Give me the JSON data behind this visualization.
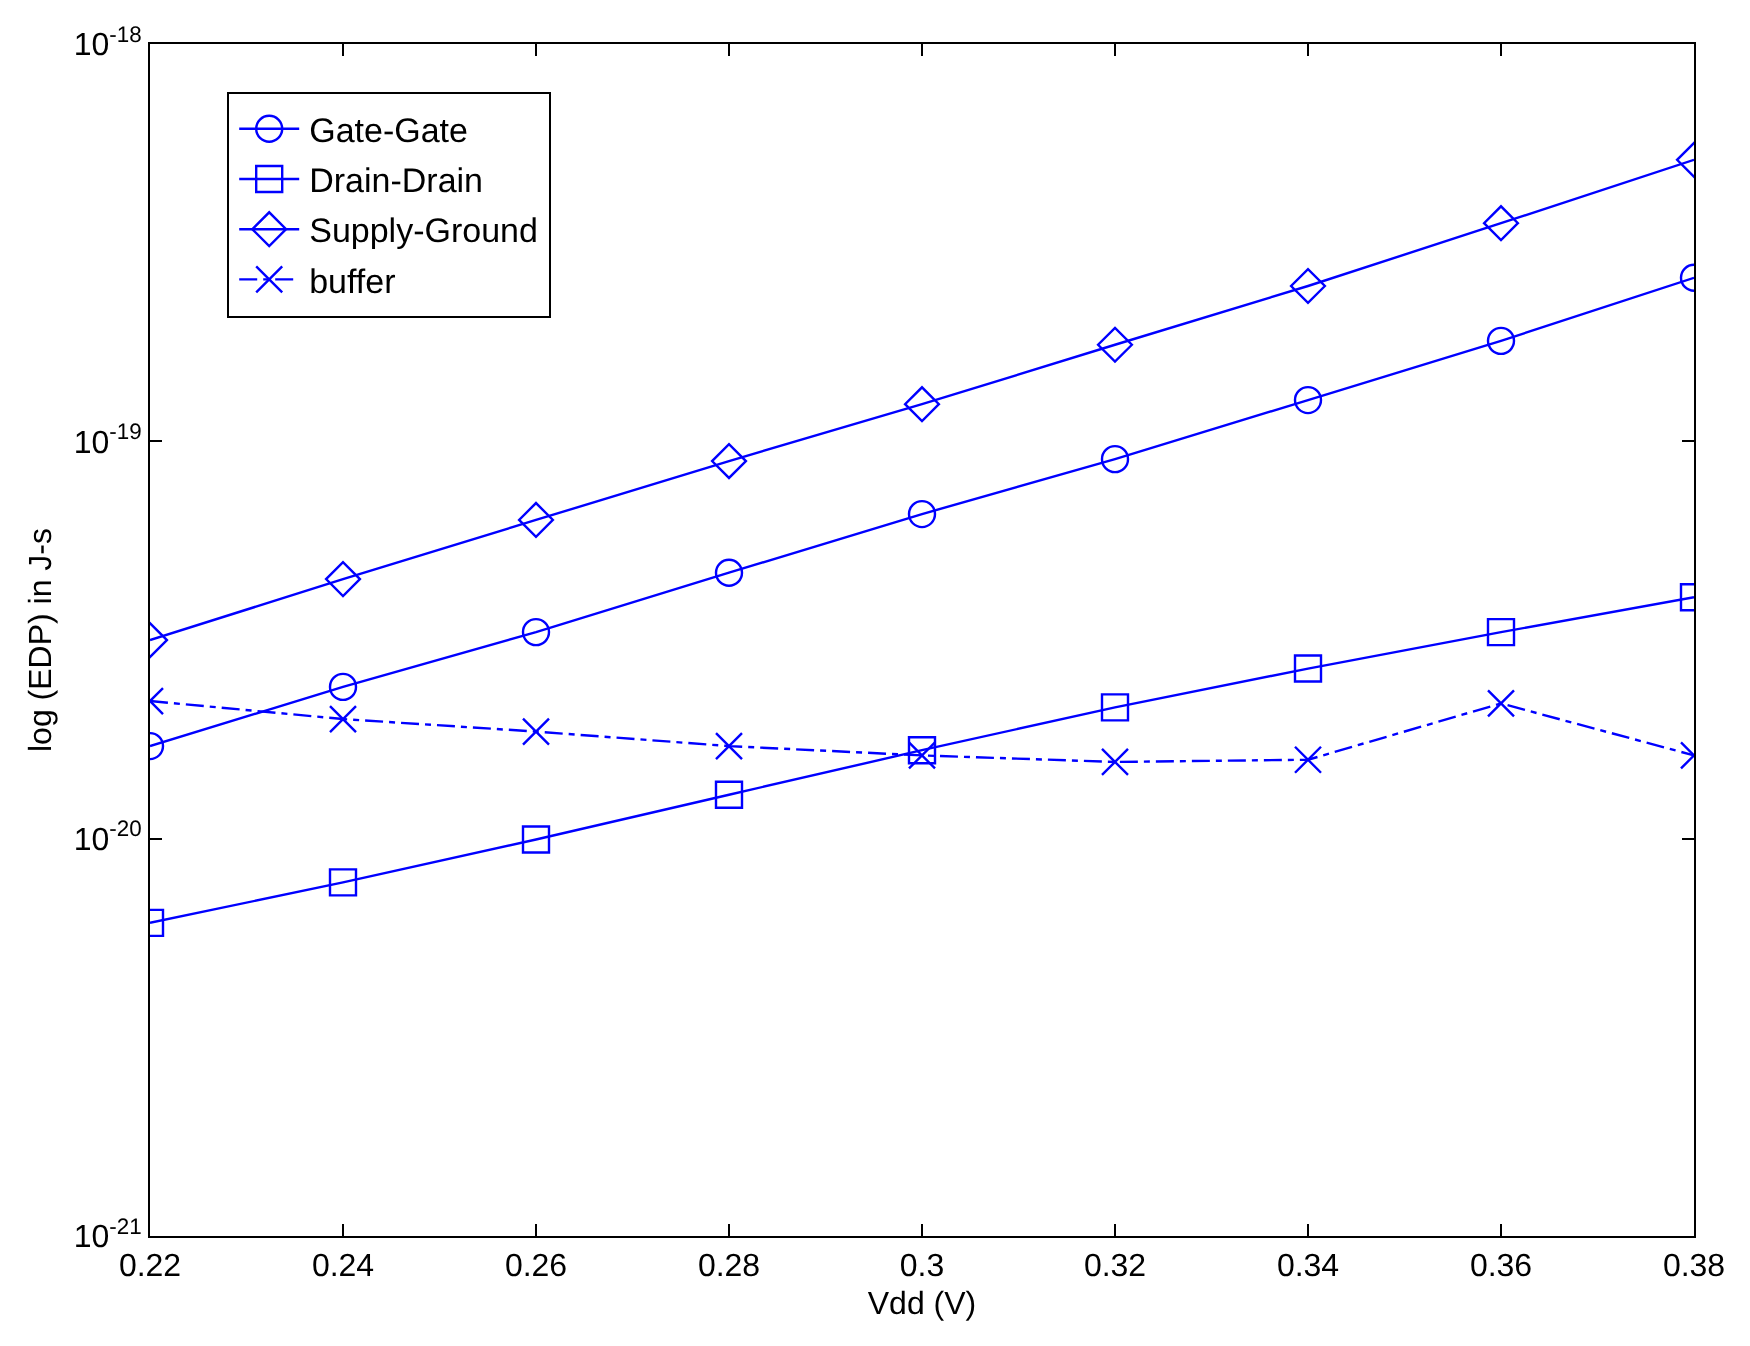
{
  "chart_data": {
    "type": "line",
    "xlabel": "Vdd (V)",
    "ylabel": "log (EDP) in J-s",
    "x": [
      0.22,
      0.24,
      0.26,
      0.28,
      0.3,
      0.32,
      0.34,
      0.36,
      0.38
    ],
    "series": [
      {
        "name": "Gate-Gate",
        "color": "#0000ff",
        "marker": "circle",
        "line_style": "solid",
        "values": [
          1.71e-20,
          2.41e-20,
          3.31e-20,
          4.67e-20,
          6.56e-20,
          9.02e-20,
          1.27e-19,
          1.79e-19,
          2.58e-19
        ]
      },
      {
        "name": "Drain-Drain",
        "color": "#0000ff",
        "marker": "square",
        "line_style": "solid",
        "values": [
          6.14e-21,
          7.76e-21,
          9.95e-21,
          1.29e-20,
          1.67e-20,
          2.14e-20,
          2.68e-20,
          3.31e-20,
          4.05e-20
        ]
      },
      {
        "name": "Supply-Ground",
        "color": "#0000ff",
        "marker": "diamond",
        "line_style": "solid",
        "values": [
          3.16e-20,
          4.5e-20,
          6.34e-20,
          8.92e-20,
          1.24e-19,
          1.75e-19,
          2.46e-19,
          3.54e-19,
          5.11e-19
        ]
      },
      {
        "name": "buffer",
        "color": "#0000ff",
        "marker": "cross",
        "line_style": "dashdot",
        "values": [
          2.22e-20,
          2e-20,
          1.86e-20,
          1.71e-20,
          1.62e-20,
          1.56e-20,
          1.58e-20,
          2.19e-20,
          1.62e-20
        ]
      }
    ],
    "log": "y",
    "legend": "top left",
    "xlim": [
      0.22,
      0.38
    ],
    "xticks": [
      0.22,
      0.24,
      0.26,
      0.28,
      0.3,
      0.32,
      0.34,
      0.36,
      0.38
    ],
    "ylim": [
      1e-21,
      1e-18
    ],
    "yticks": [
      {
        "value": 1e-21,
        "label": "10$^{-21}$"
      },
      {
        "value": 1e-20,
        "label": "10$^{-20}$"
      },
      {
        "value": 1e-19,
        "label": "10$^{-19}$"
      },
      {
        "value": 1e-18,
        "label": "10$^{-18}$"
      }
    ]
  }
}
